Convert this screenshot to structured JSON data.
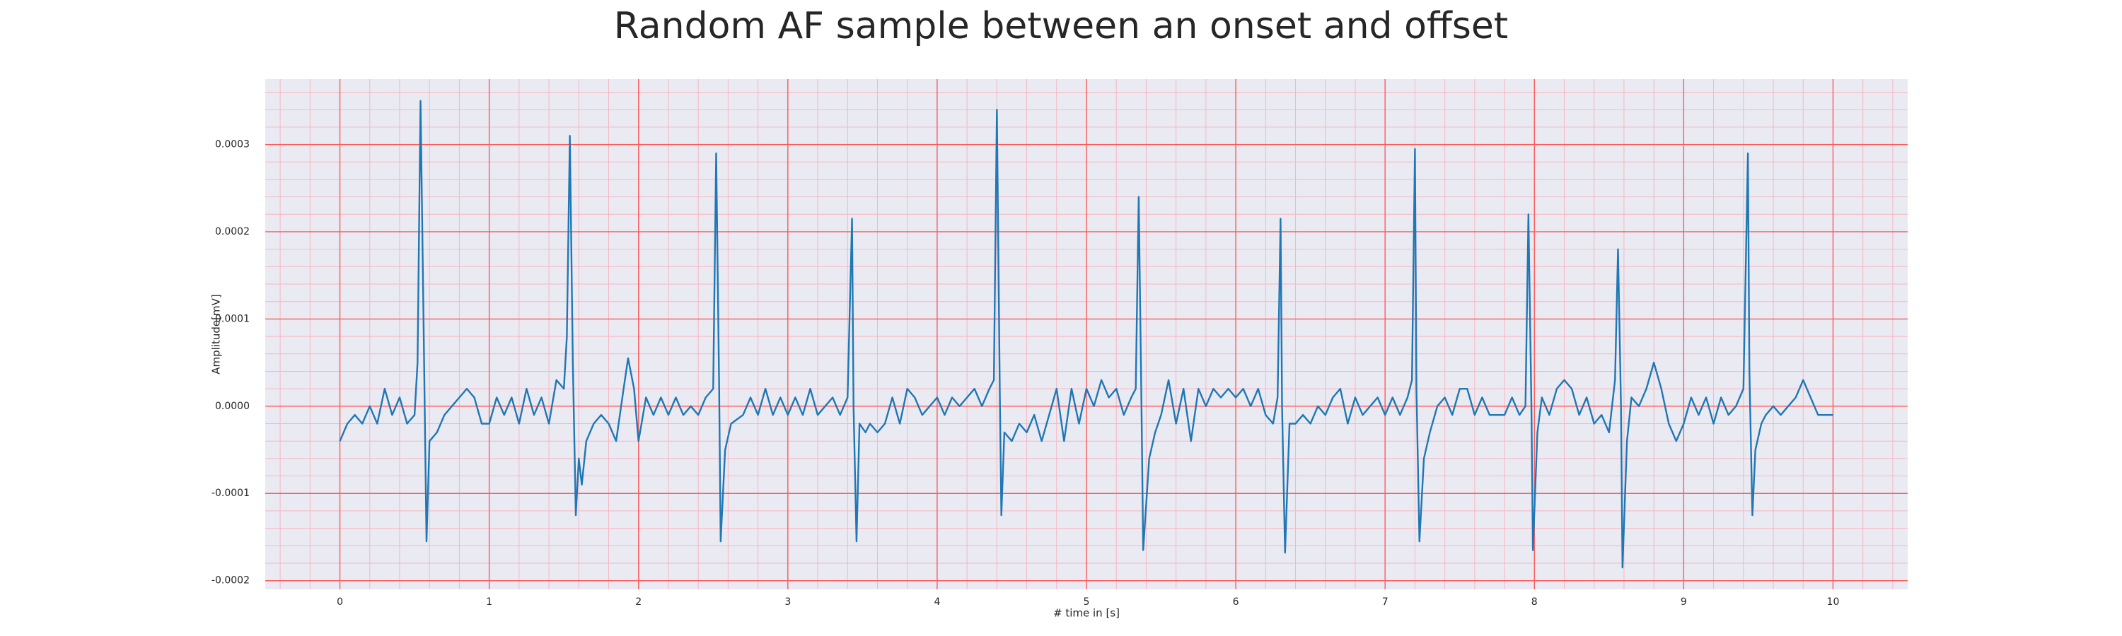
{
  "chart_data": {
    "type": "line",
    "title": "Random AF sample between an onset and offset",
    "x_label": "# time in [s]",
    "y_label": "Amplitude[mV]",
    "color": "#1f77b4",
    "grid": true,
    "xlim": [
      -0.5,
      10.5
    ],
    "ylim": [
      -0.00021,
      0.000375
    ],
    "xticks": [
      0,
      1,
      2,
      3,
      4,
      5,
      6,
      7,
      8,
      9,
      10
    ],
    "yticks": [
      {
        "value": -0.0002,
        "label": "-0.0002"
      },
      {
        "value": -0.0001,
        "label": "-0.0001"
      },
      {
        "value": 0,
        "label": "0.0000"
      },
      {
        "value": 0.0001,
        "label": "0.0001"
      },
      {
        "value": 0.0002,
        "label": "0.0002"
      },
      {
        "value": 0.0003,
        "label": "0.0003"
      }
    ],
    "x": [
      0,
      0.05,
      0.1,
      0.15,
      0.2,
      0.25,
      0.3,
      0.35,
      0.4,
      0.45,
      0.5,
      0.52,
      0.54,
      0.56,
      0.58,
      0.6,
      0.65,
      0.7,
      0.75,
      0.8,
      0.85,
      0.9,
      0.95,
      1.0,
      1.05,
      1.1,
      1.15,
      1.2,
      1.25,
      1.3,
      1.35,
      1.4,
      1.45,
      1.5,
      1.52,
      1.54,
      1.56,
      1.58,
      1.6,
      1.62,
      1.65,
      1.7,
      1.75,
      1.8,
      1.85,
      1.9,
      1.93,
      1.97,
      2.0,
      2.05,
      2.1,
      2.15,
      2.2,
      2.25,
      2.3,
      2.35,
      2.4,
      2.45,
      2.5,
      2.52,
      2.54,
      2.55,
      2.58,
      2.62,
      2.7,
      2.75,
      2.8,
      2.85,
      2.9,
      2.95,
      3.0,
      3.05,
      3.1,
      3.15,
      3.2,
      3.25,
      3.3,
      3.35,
      3.4,
      3.43,
      3.44,
      3.46,
      3.48,
      3.52,
      3.55,
      3.6,
      3.65,
      3.7,
      3.75,
      3.8,
      3.85,
      3.9,
      3.95,
      4.0,
      4.05,
      4.1,
      4.15,
      4.2,
      4.25,
      4.3,
      4.35,
      4.38,
      4.4,
      4.42,
      4.43,
      4.45,
      4.5,
      4.55,
      4.6,
      4.65,
      4.7,
      4.75,
      4.8,
      4.85,
      4.9,
      4.95,
      5.0,
      5.05,
      5.1,
      5.15,
      5.2,
      5.25,
      5.3,
      5.33,
      5.35,
      5.37,
      5.38,
      5.42,
      5.46,
      5.5,
      5.55,
      5.6,
      5.65,
      5.7,
      5.75,
      5.8,
      5.85,
      5.9,
      5.95,
      6.0,
      6.05,
      6.1,
      6.15,
      6.2,
      6.25,
      6.28,
      6.3,
      6.31,
      6.33,
      6.36,
      6.4,
      6.45,
      6.5,
      6.55,
      6.6,
      6.65,
      6.7,
      6.75,
      6.8,
      6.85,
      6.9,
      6.95,
      7.0,
      7.05,
      7.1,
      7.15,
      7.18,
      7.2,
      7.21,
      7.23,
      7.26,
      7.3,
      7.35,
      7.4,
      7.45,
      7.5,
      7.55,
      7.6,
      7.65,
      7.7,
      7.75,
      7.8,
      7.85,
      7.9,
      7.94,
      7.96,
      7.98,
      7.99,
      8.02,
      8.05,
      8.1,
      8.15,
      8.2,
      8.25,
      8.3,
      8.35,
      8.4,
      8.45,
      8.5,
      8.54,
      8.56,
      8.58,
      8.59,
      8.62,
      8.65,
      8.7,
      8.75,
      8.8,
      8.85,
      8.9,
      8.95,
      9.0,
      9.05,
      9.1,
      9.15,
      9.2,
      9.25,
      9.3,
      9.35,
      9.4,
      9.43,
      9.44,
      9.46,
      9.48,
      9.52,
      9.55,
      9.6,
      9.65,
      9.7,
      9.75,
      9.8,
      9.85,
      9.9,
      9.95,
      10.0
    ],
    "values": [
      -4e-05,
      -2e-05,
      -1e-05,
      -2e-05,
      0,
      -2e-05,
      2e-05,
      -1e-05,
      1e-05,
      -2e-05,
      -1e-05,
      5e-05,
      0.00035,
      0.0001,
      -0.000155,
      -4e-05,
      -3e-05,
      -1e-05,
      0,
      1e-05,
      2e-05,
      1e-05,
      -2e-05,
      -2e-05,
      1e-05,
      -1e-05,
      1e-05,
      -2e-05,
      2e-05,
      -1e-05,
      1e-05,
      -2e-05,
      3e-05,
      2e-05,
      8e-05,
      0.00031,
      5e-05,
      -0.000125,
      -6e-05,
      -9e-05,
      -4e-05,
      -2e-05,
      -1e-05,
      -2e-05,
      -4e-05,
      2e-05,
      5.5e-05,
      2e-05,
      -4e-05,
      1e-05,
      -1e-05,
      1e-05,
      -1e-05,
      1e-05,
      -1e-05,
      0,
      -1e-05,
      1e-05,
      2e-05,
      0.00029,
      2e-05,
      -0.000155,
      -5e-05,
      -2e-05,
      -1e-05,
      1e-05,
      -1e-05,
      2e-05,
      -1e-05,
      1e-05,
      -1e-05,
      1e-05,
      -1e-05,
      2e-05,
      -1e-05,
      0,
      1e-05,
      -1e-05,
      1e-05,
      0.000215,
      0,
      -0.000155,
      -2e-05,
      -3e-05,
      -2e-05,
      -3e-05,
      -2e-05,
      1e-05,
      -2e-05,
      2e-05,
      1e-05,
      -1e-05,
      0,
      1e-05,
      -1e-05,
      1e-05,
      0,
      1e-05,
      2e-05,
      0,
      2e-05,
      3e-05,
      0.00034,
      1e-05,
      -0.000125,
      -3e-05,
      -4e-05,
      -2e-05,
      -3e-05,
      -1e-05,
      -4e-05,
      -1e-05,
      2e-05,
      -4e-05,
      2e-05,
      -2e-05,
      2e-05,
      0,
      3e-05,
      1e-05,
      2e-05,
      -1e-05,
      1e-05,
      2e-05,
      0.00024,
      -2e-05,
      -0.000165,
      -6e-05,
      -3e-05,
      -1e-05,
      3e-05,
      -2e-05,
      2e-05,
      -4e-05,
      2e-05,
      0,
      2e-05,
      1e-05,
      2e-05,
      1e-05,
      2e-05,
      0,
      2e-05,
      -1e-05,
      -2e-05,
      1e-05,
      0.000215,
      0,
      -0.000168,
      -2e-05,
      -2e-05,
      -1e-05,
      -2e-05,
      0,
      -1e-05,
      1e-05,
      2e-05,
      -2e-05,
      1e-05,
      -1e-05,
      0,
      1e-05,
      -1e-05,
      1e-05,
      -1e-05,
      1e-05,
      3e-05,
      0.000295,
      2e-05,
      -0.000155,
      -6e-05,
      -3e-05,
      0,
      1e-05,
      -1e-05,
      2e-05,
      2e-05,
      -1e-05,
      1e-05,
      -1e-05,
      -1e-05,
      -1e-05,
      1e-05,
      -1e-05,
      0,
      0.00022,
      0,
      -0.000165,
      -3e-05,
      1e-05,
      -1e-05,
      2e-05,
      3e-05,
      2e-05,
      -1e-05,
      1e-05,
      -2e-05,
      -1e-05,
      -3e-05,
      3e-05,
      0.00018,
      0,
      -0.000185,
      -4e-05,
      1e-05,
      0,
      2e-05,
      5e-05,
      2e-05,
      -2e-05,
      -4e-05,
      -2e-05,
      1e-05,
      -1e-05,
      1e-05,
      -2e-05,
      1e-05,
      -1e-05,
      0,
      2e-05,
      0.00029,
      4e-05,
      -0.000125,
      -5e-05,
      -2e-05,
      -1e-05,
      0,
      -1e-05,
      0,
      1e-05,
      3e-05,
      1e-05,
      -1e-05,
      -1e-05,
      -1e-05
    ]
  }
}
